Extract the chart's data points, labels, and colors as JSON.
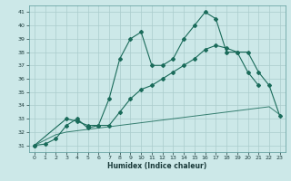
{
  "xlabel": "Humidex (Indice chaleur)",
  "bg_color": "#cce8e8",
  "grid_color": "#aacccc",
  "line_color": "#1a6b5a",
  "xlim": [
    -0.5,
    23.5
  ],
  "ylim": [
    30.5,
    41.5
  ],
  "xticks": [
    0,
    1,
    2,
    3,
    4,
    5,
    6,
    7,
    8,
    9,
    10,
    11,
    12,
    13,
    14,
    15,
    16,
    17,
    18,
    19,
    20,
    21,
    22,
    23
  ],
  "yticks": [
    31,
    32,
    33,
    34,
    35,
    36,
    37,
    38,
    39,
    40,
    41
  ],
  "line1_x": [
    0,
    1,
    2,
    3,
    4,
    5,
    6,
    7,
    8,
    9,
    10,
    11,
    12,
    13,
    14,
    15,
    16,
    17,
    18,
    19,
    20,
    21
  ],
  "line1_y": [
    31.0,
    31.1,
    31.5,
    32.5,
    33.0,
    32.3,
    32.5,
    34.5,
    37.5,
    39.0,
    39.5,
    37.0,
    37.0,
    37.5,
    39.0,
    40.0,
    41.0,
    40.5,
    38.0,
    38.0,
    36.5,
    35.5
  ],
  "line2_x": [
    0,
    3,
    4,
    5,
    6,
    7,
    8,
    9,
    10,
    11,
    12,
    13,
    14,
    15,
    16,
    17,
    18,
    19,
    20,
    21,
    22,
    23
  ],
  "line2_y": [
    31.0,
    33.0,
    32.8,
    32.5,
    32.5,
    32.5,
    33.5,
    34.5,
    35.2,
    35.5,
    36.0,
    36.5,
    37.0,
    37.5,
    38.2,
    38.5,
    38.3,
    38.0,
    38.0,
    36.5,
    35.5,
    33.2
  ],
  "line3_x": [
    0,
    1,
    2,
    3,
    4,
    5,
    6,
    7,
    8,
    9,
    10,
    11,
    12,
    13,
    14,
    15,
    16,
    17,
    18,
    19,
    20,
    21,
    22,
    23
  ],
  "line3_y": [
    31.0,
    31.4,
    31.8,
    32.0,
    32.1,
    32.2,
    32.3,
    32.4,
    32.5,
    32.6,
    32.7,
    32.8,
    32.9,
    33.0,
    33.1,
    33.2,
    33.3,
    33.4,
    33.5,
    33.6,
    33.7,
    33.8,
    33.9,
    33.3
  ]
}
